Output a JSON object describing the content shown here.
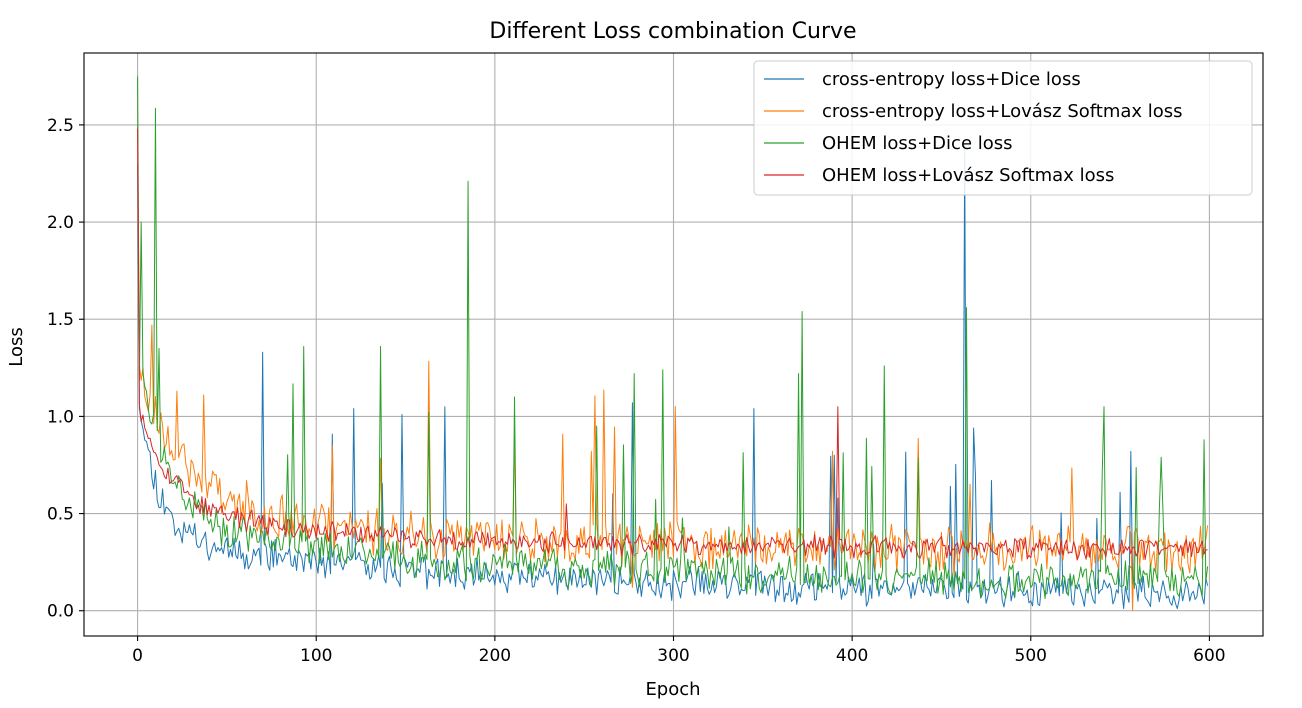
{
  "chart_data": {
    "type": "line",
    "title": "Different Loss combination Curve",
    "xlabel": "Epoch",
    "ylabel": "Loss",
    "xlim": [
      -30,
      630
    ],
    "ylim": [
      -0.13,
      2.87
    ],
    "xticks": [
      0,
      100,
      200,
      300,
      400,
      500,
      600
    ],
    "xtick_labels": [
      "0",
      "100",
      "200",
      "300",
      "400",
      "500",
      "600"
    ],
    "yticks": [
      0.0,
      0.5,
      1.0,
      1.5,
      2.0,
      2.5
    ],
    "ytick_labels": [
      "0.0",
      "0.5",
      "1.0",
      "1.5",
      "2.0",
      "2.5"
    ],
    "grid": true,
    "legend_position": "top-right",
    "x_count": 600,
    "series": [
      {
        "name": "cross-entropy loss+Dice loss",
        "color": "#1f77b4",
        "seed": 11,
        "start": 2.3,
        "floor": 0.15,
        "amp": 0.75,
        "decay": 10,
        "tail": 0.001,
        "noise": 0.07,
        "spike_prob": 0.02,
        "spikes": [
          [
            70,
            1.33
          ],
          [
            121,
            1.04
          ],
          [
            148,
            1.01
          ],
          [
            172,
            1.05
          ],
          [
            277,
            1.07
          ],
          [
            345,
            1.04
          ],
          [
            390,
            0.8
          ],
          [
            455,
            0.64
          ],
          [
            463,
            2.4
          ],
          [
            468,
            0.94
          ],
          [
            478,
            0.67
          ],
          [
            550,
            0.61
          ],
          [
            556,
            0.82
          ]
        ]
      },
      {
        "name": "cross-entropy loss+Lovász Softmax loss",
        "color": "#ff7f0e",
        "seed": 23,
        "start": 2.5,
        "floor": 0.33,
        "amp": 0.7,
        "decay": 25,
        "tail": 0.0003,
        "noise": 0.1,
        "spike_prob": 0.015,
        "spikes": [
          [
            8,
            1.47
          ],
          [
            22,
            1.13
          ],
          [
            37,
            1.11
          ],
          [
            109,
            0.85
          ],
          [
            211,
            0.9
          ],
          [
            277,
            0.12
          ],
          [
            389,
            0.82
          ],
          [
            466,
            0.65
          ],
          [
            557,
            0.0
          ]
        ]
      },
      {
        "name": "OHEM loss+Dice loss",
        "color": "#2ca02c",
        "seed": 37,
        "start": 2.75,
        "floor": 0.2,
        "amp": 0.85,
        "decay": 15,
        "tail": 0.0008,
        "noise": 0.08,
        "spike_prob": 0.045,
        "spikes": [
          [
            2,
            2.0
          ],
          [
            12,
            1.35
          ],
          [
            93,
            1.36
          ],
          [
            136,
            1.36
          ],
          [
            163,
            1.02
          ],
          [
            185,
            2.21
          ],
          [
            257,
            0.95
          ],
          [
            278,
            1.22
          ],
          [
            294,
            1.24
          ],
          [
            370,
            1.22
          ],
          [
            372,
            1.54
          ],
          [
            418,
            1.26
          ],
          [
            464,
            1.56
          ],
          [
            541,
            1.05
          ],
          [
            573,
            0.79
          ],
          [
            597,
            0.88
          ]
        ]
      },
      {
        "name": "OHEM loss+Lovász Softmax loss",
        "color": "#d62728",
        "seed": 53,
        "start": 2.48,
        "floor": 0.33,
        "amp": 0.55,
        "decay": 18,
        "tail": 0.0002,
        "noise": 0.045,
        "spike_prob": 0.004,
        "spikes": [
          [
            392,
            1.05
          ],
          [
            240,
            0.55
          ]
        ]
      }
    ]
  }
}
